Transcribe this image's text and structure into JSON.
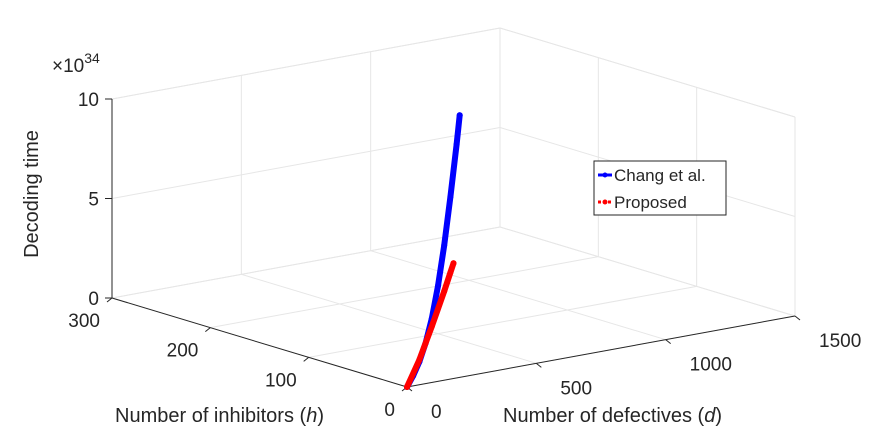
{
  "chart_data": {
    "type": "line3d",
    "title": "",
    "xlabel_text": "Number of defectives (",
    "xlabel_var": "d",
    "xlabel_close": ")",
    "ylabel_text": "Number of inhibitors (",
    "ylabel_var": "h",
    "ylabel_close": ")",
    "zlabel": "Decoding time",
    "z_multiplier_base": "×10",
    "z_multiplier_exp": "34",
    "xlim": [
      0,
      1500
    ],
    "ylim": [
      0,
      300
    ],
    "zlim": [
      0,
      10
    ],
    "x_ticks": [
      "0",
      "500",
      "1000",
      "1500"
    ],
    "y_ticks": [
      "0",
      "100",
      "200",
      "300"
    ],
    "z_ticks": [
      "0",
      "5",
      "10"
    ],
    "legend_position": "right",
    "series": [
      {
        "name": "Chang et al.",
        "color": "#0000ff",
        "marker": "dot",
        "points": [
          [
            0,
            0,
            0
          ],
          [
            100,
            20,
            0.03
          ],
          [
            200,
            40,
            0.2
          ],
          [
            300,
            60,
            0.6
          ],
          [
            400,
            80,
            1.3
          ],
          [
            500,
            100,
            2.4
          ],
          [
            600,
            120,
            3.9
          ],
          [
            700,
            140,
            5.8
          ],
          [
            800,
            160,
            7.9
          ],
          [
            850,
            170,
            9.1
          ]
        ]
      },
      {
        "name": "Proposed",
        "color": "#ff0000",
        "marker": "dot",
        "points": [
          [
            0,
            0,
            0
          ],
          [
            200,
            40,
            0.3
          ],
          [
            400,
            80,
            0.9
          ],
          [
            600,
            120,
            1.6
          ],
          [
            700,
            140,
            2.0
          ],
          [
            750,
            150,
            2.2
          ]
        ]
      }
    ]
  }
}
